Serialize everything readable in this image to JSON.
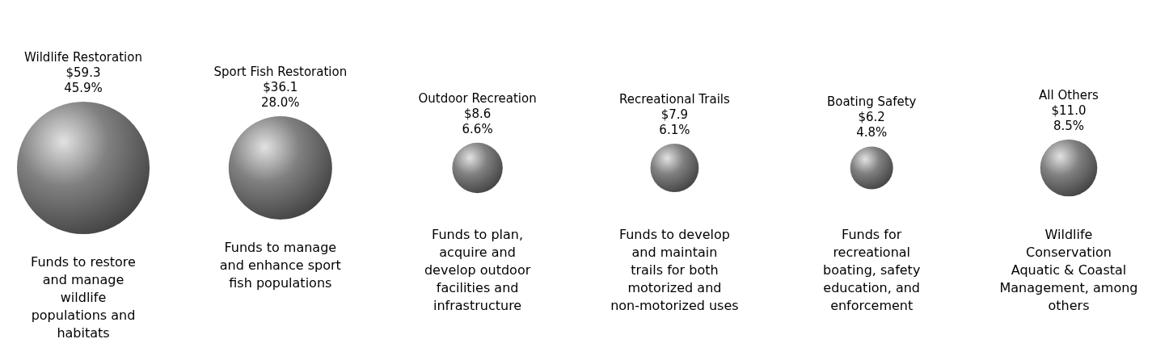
{
  "chart_data": {
    "type": "other",
    "categories": [
      "Wildlife Restoration",
      "Sport Fish Restoration",
      "Outdoor Recreation",
      "Recreational Trails",
      "Boating Safety",
      "All Others"
    ],
    "values": [
      59.3,
      36.1,
      8.6,
      7.9,
      6.2,
      11.0
    ],
    "value_labels": [
      "$59.3",
      "$36.1",
      "$8.6",
      "$7.9",
      "$6.2",
      "$11.0"
    ],
    "color": "#808080",
    "annotations": [
      {
        "text": "45.9%",
        "x": "Wildlife Restoration"
      },
      {
        "text": "28.0%",
        "x": "Sport Fish Restoration"
      },
      {
        "text": "6.6%",
        "x": "Outdoor Recreation"
      },
      {
        "text": "6.1%",
        "x": "Recreational Trails"
      },
      {
        "text": "4.8%",
        "x": "Boating Safety"
      },
      {
        "text": "8.5%",
        "x": "All Others"
      },
      {
        "text": "Funds to restore and manage wildlife populations and habitats",
        "x": "Wildlife Restoration"
      },
      {
        "text": "Funds to manage and enhance sport fish populations",
        "x": "Sport Fish Restoration"
      },
      {
        "text": "Funds to plan, acquire and develop outdoor facilities and infrastructure",
        "x": "Outdoor Recreation"
      },
      {
        "text": "Funds to develop and maintain trails for both motorized and non-motorized uses",
        "x": "Recreational Trails"
      },
      {
        "text": "Funds for recreational boating, safety education, and enforcement",
        "x": "Boating Safety"
      },
      {
        "text": "Wildlife Conservation Aquatic & Coastal Management, among others",
        "x": "All Others"
      }
    ]
  }
}
